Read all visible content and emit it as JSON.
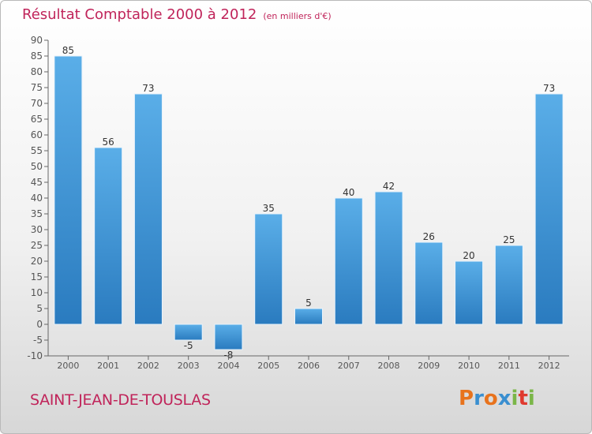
{
  "title": "Résultat Comptable 2000 à 2012",
  "unit": "(en milliers d'€)",
  "city": "SAINT-JEAN-DE-TOUSLAS",
  "logo": {
    "letters": [
      "P",
      "r",
      "o",
      "x",
      "i",
      "t",
      "i"
    ],
    "colors": [
      "#e8731d",
      "#3a8fd0",
      "#e8731d",
      "#3a8fd0",
      "#7ab648",
      "#e03a2f",
      "#7ab648"
    ]
  },
  "colors": {
    "bar_top": "#5aaee8",
    "bar_bottom": "#2a7bbf",
    "title": "#c0245a",
    "axis": "#555555"
  },
  "chart_data": {
    "type": "bar",
    "categories": [
      "2000",
      "2001",
      "2002",
      "2003",
      "2004",
      "2005",
      "2006",
      "2007",
      "2008",
      "2009",
      "2010",
      "2011",
      "2012"
    ],
    "values": [
      85,
      56,
      73,
      -5,
      -8,
      35,
      5,
      40,
      42,
      26,
      20,
      25,
      73
    ],
    "labels": [
      "85",
      "56",
      "73",
      "-5",
      "-8",
      "35",
      "5",
      "40",
      "42",
      "26",
      "20",
      "25",
      "73"
    ],
    "ylim": [
      -10,
      90
    ],
    "yticks": [
      -10,
      -5,
      0,
      5,
      10,
      15,
      20,
      25,
      30,
      35,
      40,
      45,
      50,
      55,
      60,
      65,
      70,
      75,
      80,
      85,
      90
    ],
    "grid": false,
    "xlabel": "",
    "ylabel": ""
  }
}
